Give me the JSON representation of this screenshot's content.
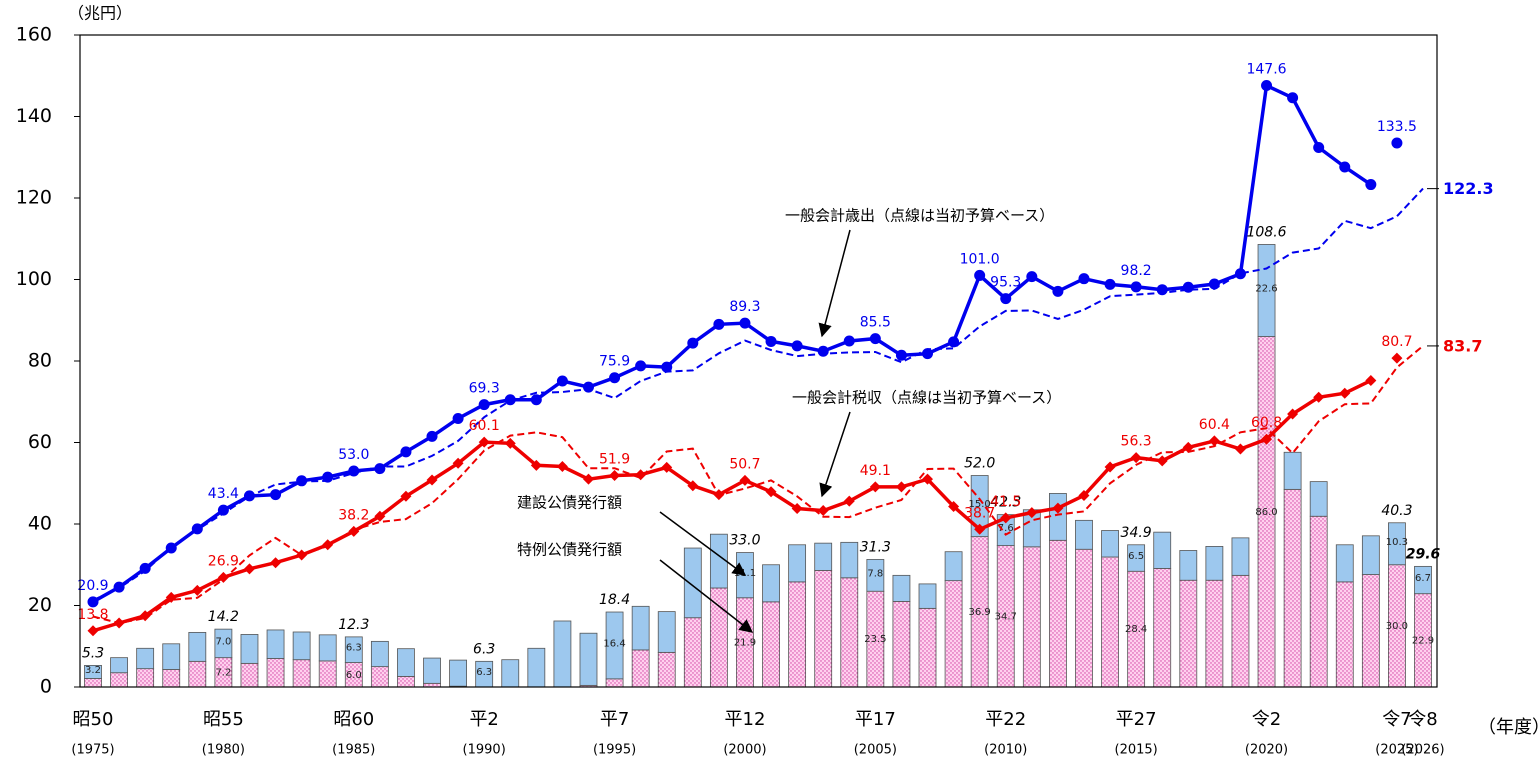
{
  "chart_data": {
    "type": "combo",
    "unit_label": "（兆円）",
    "x_unit_label": "（年度）",
    "categories": [
      "昭50",
      null,
      null,
      null,
      null,
      "昭55",
      null,
      null,
      null,
      null,
      "昭60",
      null,
      null,
      null,
      null,
      "平2",
      null,
      null,
      null,
      null,
      "平7",
      null,
      null,
      null,
      null,
      "平12",
      null,
      null,
      null,
      null,
      "平17",
      null,
      null,
      null,
      null,
      "平22",
      null,
      null,
      null,
      null,
      "平27",
      null,
      null,
      null,
      null,
      "令2",
      null,
      null,
      null,
      null,
      "令7",
      "令8"
    ],
    "category_years": [
      "(1975)",
      null,
      null,
      null,
      null,
      "(1980)",
      null,
      null,
      null,
      null,
      "(1985)",
      null,
      null,
      null,
      null,
      "(1990)",
      null,
      null,
      null,
      null,
      "(1995)",
      null,
      null,
      null,
      null,
      "(2000)",
      null,
      null,
      null,
      null,
      "(2005)",
      null,
      null,
      null,
      null,
      "(2010)",
      null,
      null,
      null,
      null,
      "(2015)",
      null,
      null,
      null,
      null,
      "(2020)",
      null,
      null,
      null,
      null,
      "(2025)",
      "(2026)"
    ],
    "ylim": [
      0,
      160
    ],
    "yticks": [
      0,
      20,
      40,
      60,
      80,
      100,
      120,
      140,
      160
    ],
    "series": [
      {
        "name": "特例公債発行額",
        "kind": "bar",
        "color": "#ffc6ea",
        "values": [
          2.1,
          3.5,
          4.5,
          4.3,
          6.3,
          7.2,
          5.8,
          7.0,
          6.7,
          6.4,
          6.0,
          5.0,
          2.6,
          0.9,
          0.2,
          0,
          0,
          0,
          0,
          0.4,
          2.0,
          9.1,
          8.5,
          17.0,
          24.3,
          21.9,
          20.9,
          25.8,
          28.6,
          26.8,
          23.5,
          21.0,
          19.3,
          26.1,
          36.9,
          34.7,
          34.4,
          36.0,
          33.8,
          31.9,
          28.4,
          29.1,
          26.2,
          26.2,
          27.4,
          86.0,
          48.5,
          41.9,
          25.8,
          27.6,
          30.0,
          22.9
        ],
        "value_labels": [
          null,
          null,
          null,
          null,
          null,
          "7.2",
          null,
          null,
          null,
          null,
          "6.0",
          null,
          null,
          null,
          null,
          null,
          null,
          null,
          null,
          null,
          null,
          null,
          null,
          null,
          null,
          "21.9",
          null,
          null,
          null,
          null,
          "23.5",
          null,
          null,
          null,
          "36.9",
          "34.7",
          null,
          null,
          null,
          null,
          "28.4",
          null,
          null,
          null,
          null,
          "86.0",
          null,
          null,
          null,
          null,
          "30.0",
          "22.9"
        ]
      },
      {
        "name": "建設公債発行額",
        "kind": "bar",
        "color": "#9dc8ee",
        "values": [
          3.2,
          3.7,
          5.0,
          6.3,
          7.1,
          7.0,
          7.1,
          7.0,
          6.8,
          6.4,
          6.3,
          6.2,
          6.8,
          6.2,
          6.4,
          6.3,
          6.7,
          9.5,
          16.2,
          12.8,
          16.4,
          10.7,
          10.0,
          17.1,
          13.2,
          11.1,
          9.1,
          9.1,
          6.7,
          8.7,
          7.8,
          6.4,
          6.0,
          7.1,
          15.0,
          7.6,
          9.1,
          11.5,
          7.1,
          6.5,
          6.5,
          8.9,
          7.3,
          8.3,
          9.2,
          22.6,
          9.1,
          8.5,
          9.1,
          9.5,
          10.3,
          6.7
        ],
        "value_labels": [
          "3.2",
          null,
          null,
          null,
          null,
          "7.0",
          null,
          null,
          null,
          null,
          "6.3",
          null,
          null,
          null,
          null,
          "6.3",
          null,
          null,
          null,
          null,
          "16.4",
          null,
          null,
          null,
          null,
          "11.1",
          null,
          null,
          null,
          null,
          "7.8",
          null,
          null,
          null,
          "15.0",
          "7.6",
          null,
          null,
          null,
          null,
          "6.5",
          null,
          null,
          null,
          null,
          "22.6",
          null,
          null,
          null,
          null,
          "10.3",
          "6.7"
        ]
      },
      {
        "kind": "line",
        "style": "dashed",
        "color": "#0000ee",
        "values": [
          21.3,
          24.3,
          28.5,
          34.3,
          38.6,
          42.6,
          46.8,
          49.7,
          50.4,
          50.6,
          52.5,
          54.1,
          54.1,
          56.7,
          60.4,
          66.2,
          70.3,
          72.2,
          72.4,
          73.1,
          70.9,
          75.1,
          77.4,
          77.7,
          81.9,
          85.0,
          82.7,
          81.2,
          81.8,
          82.1,
          82.2,
          79.7,
          82.9,
          83.1,
          88.5,
          92.3,
          92.4,
          90.3,
          92.6,
          95.9,
          96.3,
          96.7,
          97.5,
          97.7,
          101.5,
          102.7,
          106.6,
          107.6,
          114.4,
          112.6,
          115.5,
          122.3
        ],
        "value_labels": [
          null,
          null,
          null,
          null,
          null,
          null,
          null,
          null,
          null,
          null,
          null,
          null,
          null,
          null,
          null,
          null,
          null,
          null,
          null,
          null,
          null,
          null,
          null,
          null,
          null,
          null,
          null,
          null,
          null,
          null,
          null,
          null,
          null,
          null,
          null,
          null,
          null,
          null,
          null,
          null,
          null,
          null,
          null,
          null,
          null,
          null,
          null,
          null,
          null,
          null,
          null,
          "122.3"
        ]
      },
      {
        "kind": "line",
        "style": "dashed",
        "color": "#ee0000",
        "values": [
          17.3,
          15.7,
          16.9,
          21.4,
          21.9,
          26.4,
          32.3,
          36.6,
          32.4,
          34.6,
          38.6,
          40.5,
          41.2,
          45.1,
          51.0,
          58.0,
          61.7,
          62.5,
          61.3,
          53.7,
          53.7,
          51.3,
          57.8,
          58.5,
          47.1,
          48.7,
          50.7,
          46.8,
          41.8,
          41.7,
          44.0,
          45.9,
          53.5,
          53.6,
          46.1,
          37.4,
          40.9,
          42.3,
          43.1,
          50.0,
          54.5,
          57.6,
          57.7,
          59.1,
          62.5,
          63.5,
          57.4,
          65.2,
          69.4,
          69.6,
          78.4,
          83.7
        ],
        "value_labels": [
          null,
          null,
          null,
          null,
          null,
          null,
          null,
          null,
          null,
          null,
          null,
          null,
          null,
          null,
          null,
          null,
          null,
          null,
          null,
          null,
          null,
          null,
          null,
          null,
          null,
          null,
          null,
          null,
          null,
          null,
          null,
          null,
          null,
          null,
          null,
          null,
          null,
          null,
          null,
          null,
          null,
          null,
          null,
          null,
          null,
          null,
          null,
          null,
          null,
          null,
          null,
          "83.7"
        ]
      },
      {
        "name": "一般会計歳出（点線は当初予算ベース）",
        "kind": "line",
        "style": "solid",
        "marker": "circle",
        "color": "#0000ee",
        "values": [
          20.9,
          24.5,
          29.1,
          34.1,
          38.8,
          43.4,
          46.9,
          47.2,
          50.6,
          51.5,
          53.0,
          53.6,
          57.7,
          61.5,
          65.9,
          69.3,
          70.5,
          70.5,
          75.1,
          73.6,
          75.9,
          78.8,
          78.5,
          84.4,
          89.0,
          89.3,
          84.8,
          83.7,
          82.4,
          84.9,
          85.5,
          81.4,
          81.8,
          84.7,
          101.0,
          95.3,
          100.7,
          97.1,
          100.2,
          98.8,
          98.2,
          97.5,
          98.1,
          98.9,
          101.4,
          147.6,
          144.6,
          132.4,
          127.6,
          123.3,
          null,
          null
        ],
        "value_labels": [
          "20.9",
          null,
          null,
          null,
          null,
          "43.4",
          null,
          null,
          null,
          null,
          "53.0",
          null,
          null,
          null,
          null,
          "69.3",
          null,
          null,
          null,
          null,
          "75.9",
          null,
          null,
          null,
          null,
          "89.3",
          null,
          null,
          null,
          null,
          "85.5",
          null,
          null,
          null,
          "101.0",
          "95.3",
          null,
          null,
          null,
          null,
          "98.2",
          null,
          null,
          null,
          null,
          "147.6",
          null,
          null,
          null,
          null,
          null,
          null
        ]
      },
      {
        "kind": "line",
        "style": "points",
        "marker": "circle",
        "color": "#0000ee",
        "values": [
          null,
          null,
          null,
          null,
          null,
          null,
          null,
          null,
          null,
          null,
          null,
          null,
          null,
          null,
          null,
          null,
          null,
          null,
          null,
          null,
          null,
          null,
          null,
          null,
          null,
          null,
          null,
          null,
          null,
          null,
          null,
          null,
          null,
          null,
          null,
          null,
          null,
          null,
          null,
          null,
          null,
          null,
          null,
          null,
          null,
          null,
          null,
          null,
          null,
          null,
          133.5,
          null
        ],
        "value_labels": [
          null,
          null,
          null,
          null,
          null,
          null,
          null,
          null,
          null,
          null,
          null,
          null,
          null,
          null,
          null,
          null,
          null,
          null,
          null,
          null,
          null,
          null,
          null,
          null,
          null,
          null,
          null,
          null,
          null,
          null,
          null,
          null,
          null,
          null,
          null,
          null,
          null,
          null,
          null,
          null,
          null,
          null,
          null,
          null,
          null,
          null,
          null,
          null,
          null,
          null,
          "133.5",
          null
        ]
      },
      {
        "name": "一般会計税収（点線は当初予算ベース）",
        "kind": "line",
        "style": "solid",
        "marker": "diamond",
        "color": "#ee0000",
        "values": [
          13.8,
          15.7,
          17.5,
          22.0,
          23.7,
          26.9,
          29.0,
          30.5,
          32.4,
          34.9,
          38.2,
          41.9,
          46.8,
          50.8,
          54.9,
          60.1,
          59.8,
          54.4,
          54.1,
          51.0,
          51.9,
          52.1,
          53.9,
          49.4,
          47.2,
          50.7,
          47.9,
          43.8,
          43.3,
          45.6,
          49.1,
          49.1,
          51.0,
          44.3,
          38.7,
          41.5,
          42.8,
          43.9,
          47.0,
          54.0,
          56.3,
          55.5,
          58.8,
          60.4,
          58.4,
          60.8,
          67.0,
          71.1,
          72.1,
          75.2,
          null,
          null
        ],
        "value_labels": [
          "13.8",
          null,
          null,
          null,
          null,
          "26.9",
          null,
          null,
          null,
          null,
          "38.2",
          null,
          null,
          null,
          null,
          "60.1",
          null,
          null,
          null,
          null,
          "51.9",
          null,
          null,
          null,
          null,
          "50.7",
          null,
          null,
          null,
          null,
          "49.1",
          null,
          null,
          null,
          "38.7",
          "41.5",
          null,
          null,
          null,
          null,
          "56.3",
          null,
          null,
          "60.4",
          null,
          "60.8",
          null,
          null,
          null,
          null,
          null,
          null
        ]
      },
      {
        "kind": "line",
        "style": "points",
        "marker": "diamond",
        "color": "#ee0000",
        "values": [
          null,
          null,
          null,
          null,
          null,
          null,
          null,
          null,
          null,
          null,
          null,
          null,
          null,
          null,
          null,
          null,
          null,
          null,
          null,
          null,
          null,
          null,
          null,
          null,
          null,
          null,
          null,
          null,
          null,
          null,
          null,
          null,
          null,
          null,
          null,
          null,
          null,
          null,
          null,
          null,
          null,
          null,
          null,
          null,
          null,
          null,
          null,
          null,
          null,
          null,
          80.7,
          null
        ],
        "value_labels": [
          null,
          null,
          null,
          null,
          null,
          null,
          null,
          null,
          null,
          null,
          null,
          null,
          null,
          null,
          null,
          null,
          null,
          null,
          null,
          null,
          null,
          null,
          null,
          null,
          null,
          null,
          null,
          null,
          null,
          null,
          null,
          null,
          null,
          null,
          null,
          null,
          null,
          null,
          null,
          null,
          null,
          null,
          null,
          null,
          null,
          null,
          null,
          null,
          null,
          null,
          "80.7",
          null
        ]
      }
    ],
    "bar_totals": {
      "values": [
        5.3,
        null,
        null,
        null,
        null,
        14.2,
        null,
        null,
        null,
        null,
        12.3,
        null,
        null,
        null,
        null,
        6.3,
        null,
        null,
        null,
        null,
        18.4,
        null,
        null,
        null,
        null,
        33.0,
        null,
        null,
        null,
        null,
        31.3,
        null,
        null,
        null,
        52.0,
        42.3,
        null,
        null,
        null,
        null,
        34.9,
        null,
        null,
        null,
        null,
        108.6,
        null,
        null,
        null,
        null,
        40.3,
        29.6
      ],
      "value_labels": [
        "5.3",
        null,
        null,
        null,
        null,
        "14.2",
        null,
        null,
        null,
        null,
        "12.3",
        null,
        null,
        null,
        null,
        "6.3",
        null,
        null,
        null,
        null,
        "18.4",
        null,
        null,
        null,
        null,
        "33.0",
        null,
        null,
        null,
        null,
        "31.3",
        null,
        null,
        null,
        "52.0",
        "42.3",
        null,
        null,
        null,
        null,
        "34.9",
        null,
        null,
        null,
        null,
        "108.6",
        null,
        null,
        null,
        null,
        "40.3",
        "29.6"
      ]
    }
  }
}
